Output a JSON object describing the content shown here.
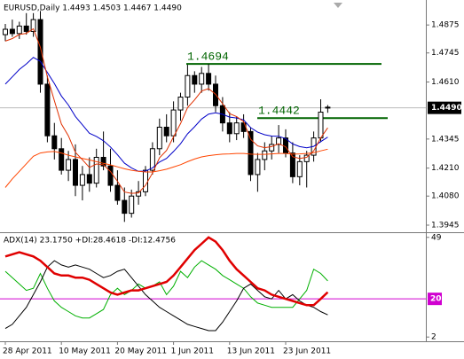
{
  "chart_data": [
    {
      "type": "candlestick",
      "title": "EURUSD,Daily  1.4493 1.4503 1.4467 1.4490",
      "open": [
        1.483,
        1.4855,
        1.4835,
        1.487,
        1.4845,
        1.49,
        1.46,
        1.436,
        1.43,
        1.42,
        1.425,
        1.413,
        1.418,
        1.414,
        1.426,
        1.422,
        1.413,
        1.406,
        1.4,
        1.408,
        1.41,
        1.42,
        1.43,
        1.44,
        1.436,
        1.448,
        1.454,
        1.464,
        1.46,
        1.465,
        1.46,
        1.45,
        1.442,
        1.437,
        1.442,
        1.438,
        1.418,
        1.425,
        1.429,
        1.432,
        1.435,
        1.428,
        1.417,
        1.424,
        1.427,
        1.435,
        1.4493
      ],
      "high": [
        1.488,
        1.49,
        1.489,
        1.493,
        1.493,
        1.494,
        1.464,
        1.442,
        1.435,
        1.429,
        1.432,
        1.422,
        1.426,
        1.43,
        1.438,
        1.43,
        1.42,
        1.412,
        1.411,
        1.415,
        1.422,
        1.433,
        1.444,
        1.446,
        1.452,
        1.456,
        1.469,
        1.466,
        1.468,
        1.4694,
        1.464,
        1.454,
        1.447,
        1.445,
        1.446,
        1.44,
        1.428,
        1.433,
        1.436,
        1.441,
        1.439,
        1.433,
        1.427,
        1.429,
        1.438,
        1.453,
        1.4503
      ],
      "low": [
        1.48,
        1.482,
        1.481,
        1.483,
        1.482,
        1.456,
        1.433,
        1.425,
        1.418,
        1.415,
        1.408,
        1.406,
        1.41,
        1.412,
        1.42,
        1.41,
        1.404,
        1.396,
        1.398,
        1.404,
        1.408,
        1.418,
        1.427,
        1.433,
        1.433,
        1.443,
        1.45,
        1.456,
        1.456,
        1.457,
        1.447,
        1.438,
        1.433,
        1.434,
        1.435,
        1.415,
        1.41,
        1.42,
        1.425,
        1.428,
        1.426,
        1.414,
        1.413,
        1.412,
        1.424,
        1.433,
        1.4467
      ],
      "close": [
        1.4855,
        1.4835,
        1.487,
        1.4845,
        1.49,
        1.46,
        1.436,
        1.43,
        1.42,
        1.425,
        1.413,
        1.418,
        1.414,
        1.426,
        1.422,
        1.413,
        1.406,
        1.4,
        1.408,
        1.41,
        1.42,
        1.43,
        1.44,
        1.436,
        1.448,
        1.454,
        1.464,
        1.46,
        1.465,
        1.46,
        1.45,
        1.442,
        1.437,
        1.442,
        1.438,
        1.418,
        1.425,
        1.429,
        1.432,
        1.435,
        1.428,
        1.417,
        1.424,
        1.427,
        1.435,
        1.447,
        1.449
      ],
      "lines": [
        {
          "color": "#0000c8",
          "values": [
            1.46,
            1.4634,
            1.4668,
            1.4694,
            1.4724,
            1.4706,
            1.4654,
            1.4603,
            1.4545,
            1.4503,
            1.445,
            1.4411,
            1.4372,
            1.4357,
            1.4337,
            1.4308,
            1.4272,
            1.4233,
            1.4211,
            1.4195,
            1.4196,
            1.4211,
            1.4238,
            1.4255,
            1.4287,
            1.4323,
            1.4369,
            1.4402,
            1.4438,
            1.4461,
            1.4467,
            1.446,
            1.4447,
            1.4443,
            1.4434,
            1.4398,
            1.4377,
            1.4365,
            1.4359,
            1.4358,
            1.4347,
            1.4322,
            1.431,
            1.4304,
            1.4311,
            1.4333,
            1.4354
          ]
        },
        {
          "color": "#ff4500",
          "values": [
            1.412,
            1.416,
            1.4195,
            1.423,
            1.4265,
            1.428,
            1.4285,
            1.4287,
            1.428,
            1.427,
            1.4262,
            1.4255,
            1.4248,
            1.424,
            1.4232,
            1.4225,
            1.4216,
            1.4207,
            1.42,
            1.4195,
            1.4192,
            1.4192,
            1.4198,
            1.4205,
            1.4215,
            1.4226,
            1.424,
            1.4252,
            1.4262,
            1.4268,
            1.4272,
            1.4275,
            1.4276,
            1.4278,
            1.4278,
            1.4275,
            1.4274,
            1.4274,
            1.4276,
            1.4278,
            1.4278,
            1.4275,
            1.4276,
            1.4278,
            1.4282,
            1.429,
            1.4298
          ]
        },
        {
          "color": "#e03000",
          "values": [
            1.48,
            1.4812,
            1.4831,
            1.4836,
            1.4857,
            1.4771,
            1.4634,
            1.4523,
            1.4415,
            1.436,
            1.4283,
            1.4249,
            1.4213,
            1.4229,
            1.4226,
            1.4194,
            1.4149,
            1.4099,
            1.4093,
            1.4095,
            1.413,
            1.4187,
            1.4258,
            1.4292,
            1.4355,
            1.4417,
            1.4491,
            1.4527,
            1.4568,
            1.4579,
            1.4553,
            1.4509,
            1.4463,
            1.4449,
            1.4426,
            1.4344,
            1.4313,
            1.4305,
            1.431,
            1.4323,
            1.4309,
            1.4263,
            1.4255,
            1.426,
            1.429,
            1.435,
            1.4397
          ]
        }
      ],
      "levels": [
        {
          "value": 1.4694,
          "color": "#006400"
        },
        {
          "value": 1.4442,
          "color": "#006400"
        }
      ],
      "last_price": {
        "value": 1.449,
        "label": "1.4490"
      },
      "ylim": [
        1.3912,
        1.4991
      ],
      "yticks": [
        1.4875,
        1.4745,
        {
          "value": 1.461,
          "label": "1.4610"
        },
        1.4345,
        {
          "value": 1.421,
          "label": "1.4210"
        },
        {
          "value": 1.408,
          "label": "1.4080"
        },
        1.3945
      ]
    },
    {
      "type": "line",
      "title": "ADX(14) 23.1750 +DI:28.4618 -DI:12.4756",
      "categories": [
        "28 Apr 2011",
        null,
        null,
        null,
        null,
        null,
        null,
        null,
        "10 May 2011",
        null,
        null,
        null,
        null,
        null,
        null,
        null,
        "20 May 2011",
        null,
        null,
        null,
        null,
        null,
        null,
        null,
        "1 Jun 2011",
        null,
        null,
        null,
        null,
        null,
        null,
        null,
        "13 Jun 2011",
        null,
        null,
        null,
        null,
        null,
        null,
        null,
        "23 Jun 2011",
        null,
        null,
        null,
        null,
        null,
        null
      ],
      "series": [
        {
          "color": "#00b000",
          "values": [
            33,
            30,
            27,
            24,
            25,
            32,
            25,
            19,
            16,
            14,
            12,
            11,
            11,
            13,
            15,
            22,
            25,
            22,
            24,
            27,
            25,
            26,
            28,
            22,
            26,
            33,
            30,
            35,
            38,
            36,
            34,
            31,
            29,
            27,
            25,
            21,
            18,
            17,
            16,
            16,
            16,
            16,
            20,
            24,
            34,
            32,
            28.4618
          ]
        },
        {
          "color": "#000000",
          "values": [
            6,
            8,
            12,
            16,
            22,
            28,
            35,
            38,
            36,
            35,
            36,
            35,
            34,
            32,
            30,
            31,
            33,
            34,
            30,
            26,
            22,
            19,
            16,
            14,
            12,
            10,
            8,
            7,
            6,
            5,
            5,
            9,
            14,
            19,
            25,
            27,
            24,
            21,
            20,
            24,
            20,
            22,
            19,
            17,
            16,
            14,
            12.4756
          ]
        },
        {
          "color": "#e00000",
          "width": 2.5,
          "values": [
            40,
            41,
            42,
            41,
            40,
            38,
            35,
            32,
            31,
            31,
            30,
            30,
            29,
            27,
            25,
            23,
            22,
            23,
            24,
            24,
            25,
            26,
            27,
            28,
            31,
            35,
            39,
            43,
            46,
            49,
            47,
            43,
            38,
            34,
            31,
            28,
            25,
            24,
            22,
            21,
            20,
            19,
            18,
            17,
            17,
            20,
            23.175
          ]
        }
      ],
      "level": {
        "value": 20,
        "color": "#d000d0"
      },
      "ylim": [
        0,
        51
      ],
      "yticks": [
        49,
        2
      ]
    }
  ]
}
